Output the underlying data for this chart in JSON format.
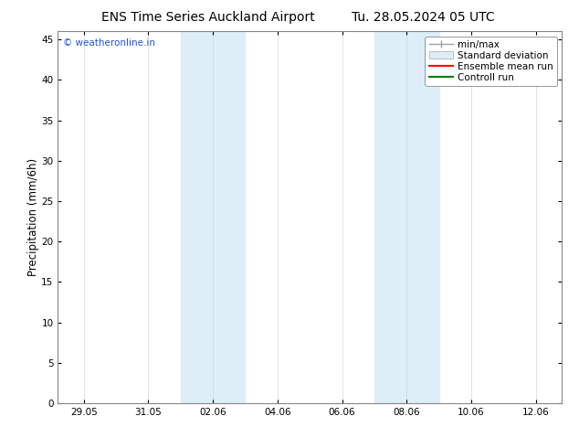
{
  "title_left": "ENS Time Series Auckland Airport",
  "title_right": "Tu. 28.05.2024 05 UTC",
  "ylabel": "Precipitation (mm/6h)",
  "watermark": "© weatheronline.in",
  "x_tick_labels": [
    "29.05",
    "31.05",
    "02.06",
    "04.06",
    "06.06",
    "08.06",
    "10.06",
    "12.06"
  ],
  "x_tick_positions": [
    0,
    2,
    4,
    6,
    8,
    10,
    12,
    14
  ],
  "ylim": [
    0,
    46
  ],
  "y_ticks": [
    0,
    5,
    10,
    15,
    20,
    25,
    30,
    35,
    40,
    45
  ],
  "shaded_regions": [
    {
      "x_start": 3.0,
      "x_end": 5.0,
      "color": "#ddeef8"
    },
    {
      "x_start": 9.0,
      "x_end": 11.0,
      "color": "#ddeef8"
    }
  ],
  "background_color": "#ffffff",
  "plot_bg_color": "#ffffff",
  "legend_items": [
    {
      "label": "min/max",
      "color": "#a0a0a0",
      "style": "minmax"
    },
    {
      "label": "Standard deviation",
      "color": "#ddeef8",
      "style": "filled_box"
    },
    {
      "label": "Ensemble mean run",
      "color": "#ff0000",
      "style": "line"
    },
    {
      "label": "Controll run",
      "color": "#008000",
      "style": "line"
    }
  ],
  "title_fontsize": 10,
  "tick_fontsize": 7.5,
  "ylabel_fontsize": 8.5,
  "legend_fontsize": 7.5
}
